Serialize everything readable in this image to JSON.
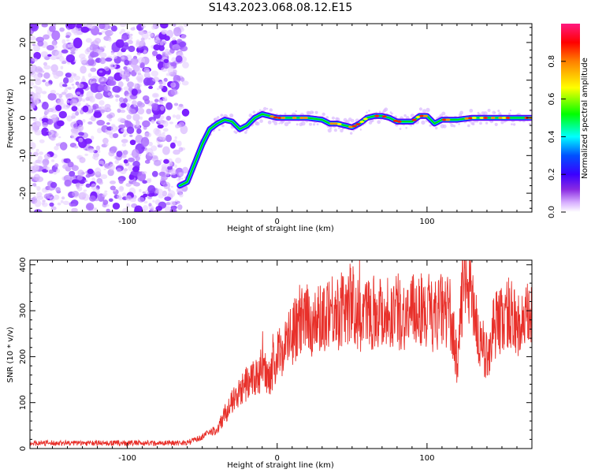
{
  "title": "S143.2023.068.08.12.E15",
  "chart_data": [
    {
      "type": "heatmap",
      "name": "spectrogram",
      "xlabel": "Height of straight line (km)",
      "ylabel": "Frequency (Hz)",
      "xlim": [
        -165,
        170
      ],
      "ylim": [
        -25,
        25
      ],
      "xticks": [
        -100,
        0,
        100
      ],
      "yticks": [
        -20,
        -10,
        0,
        10,
        20
      ],
      "noise_region_x": [
        -165,
        -65
      ],
      "ridge": {
        "x": [
          -65,
          -60,
          -55,
          -50,
          -45,
          -40,
          -35,
          -30,
          -25,
          -20,
          -15,
          -10,
          -5,
          0,
          10,
          20,
          30,
          35,
          40,
          45,
          50,
          55,
          60,
          65,
          70,
          75,
          80,
          85,
          90,
          95,
          100,
          105,
          110,
          120,
          130,
          140,
          150,
          160,
          170
        ],
        "freq": [
          -18,
          -17,
          -12,
          -7,
          -3,
          -1.5,
          -0.5,
          -1,
          -3,
          -2,
          0,
          1,
          0.5,
          0,
          0,
          0,
          -0.5,
          -1.5,
          -1.5,
          -2,
          -2.5,
          -1.5,
          0,
          0.5,
          0.5,
          0,
          -1,
          -1,
          -1,
          0.5,
          0.5,
          -1.5,
          -0.5,
          -0.5,
          0,
          0,
          0,
          0,
          0
        ]
      },
      "colorbar": {
        "label": "Normalized spectral amplitude",
        "range": [
          0,
          1
        ],
        "ticks": [
          "0.0",
          "0.2",
          "0.4",
          "0.6",
          "0.8"
        ],
        "tick_values": [
          0,
          0.2,
          0.4,
          0.6,
          0.8
        ],
        "colors": [
          "#ffffff",
          "#c080ff",
          "#6a00ff",
          "#0000ff",
          "#00ffff",
          "#00ff00",
          "#ffff00",
          "#ff8000",
          "#ff0000",
          "#ff1a80"
        ]
      }
    },
    {
      "type": "line",
      "name": "snr",
      "xlabel": "Height of straight line (km)",
      "ylabel": "SNR (10 * v/v)",
      "xlim": [
        -165,
        170
      ],
      "ylim": [
        0,
        410
      ],
      "xticks": [
        -100,
        0,
        100
      ],
      "yticks": [
        0,
        100,
        200,
        300,
        400
      ],
      "color": "#e8302a",
      "series": {
        "x": [
          -165,
          -120,
          -80,
          -60,
          -50,
          -45,
          -40,
          -35,
          -30,
          -25,
          -20,
          -15,
          -10,
          -5,
          0,
          5,
          10,
          15,
          20,
          25,
          30,
          35,
          40,
          45,
          50,
          55,
          60,
          65,
          70,
          75,
          80,
          85,
          90,
          95,
          100,
          105,
          110,
          115,
          120,
          125,
          130,
          135,
          140,
          145,
          150,
          155,
          160,
          165,
          170
        ],
        "y": [
          12,
          12,
          12,
          13,
          25,
          35,
          40,
          75,
          100,
          120,
          145,
          150,
          175,
          160,
          200,
          225,
          250,
          270,
          280,
          270,
          285,
          310,
          295,
          305,
          320,
          280,
          295,
          300,
          300,
          295,
          300,
          290,
          295,
          310,
          285,
          290,
          300,
          300,
          190,
          380,
          350,
          220,
          200,
          270,
          280,
          300,
          270,
          270,
          300
        ]
      }
    }
  ]
}
